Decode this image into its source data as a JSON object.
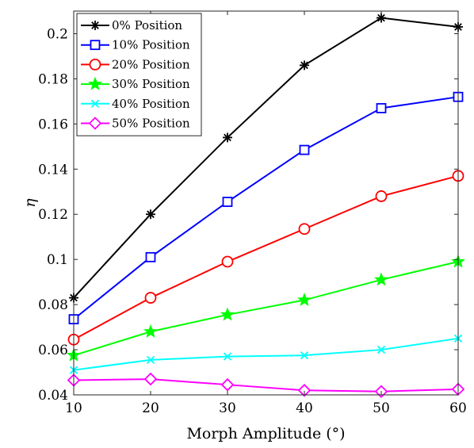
{
  "chart_data": {
    "type": "line",
    "title": "",
    "xlabel": "Morph Amplitude (°)",
    "ylabel": "η",
    "x": [
      10,
      20,
      30,
      40,
      50,
      60
    ],
    "xlim": [
      10,
      60
    ],
    "ylim": [
      0.04,
      0.21
    ],
    "xticks": [
      "10",
      "20",
      "30",
      "40",
      "50",
      "60"
    ],
    "yticks": [
      "0.04",
      "0.06",
      "0.08",
      "0.1",
      "0.12",
      "0.14",
      "0.16",
      "0.18",
      "0.2"
    ],
    "grid": false,
    "legend_position": "top-left",
    "series": [
      {
        "name": "0% Position",
        "color": "#000000",
        "marker": "asterisk",
        "values": [
          0.083,
          0.12,
          0.154,
          0.186,
          0.207,
          0.203
        ]
      },
      {
        "name": "10% Position",
        "color": "#0000ff",
        "marker": "square",
        "values": [
          0.0735,
          0.101,
          0.1255,
          0.1485,
          0.167,
          0.172
        ]
      },
      {
        "name": "20% Position",
        "color": "#ff0000",
        "marker": "circle",
        "values": [
          0.0645,
          0.083,
          0.099,
          0.1135,
          0.128,
          0.137
        ]
      },
      {
        "name": "30% Position",
        "color": "#00ff00",
        "marker": "star",
        "values": [
          0.0575,
          0.068,
          0.0755,
          0.082,
          0.091,
          0.099
        ]
      },
      {
        "name": "40% Position",
        "color": "#00ffff",
        "marker": "x",
        "values": [
          0.051,
          0.0555,
          0.057,
          0.0575,
          0.06,
          0.065
        ]
      },
      {
        "name": "50% Position",
        "color": "#ff00ff",
        "marker": "diamond",
        "values": [
          0.0465,
          0.047,
          0.0445,
          0.042,
          0.0415,
          0.0425
        ]
      }
    ]
  }
}
